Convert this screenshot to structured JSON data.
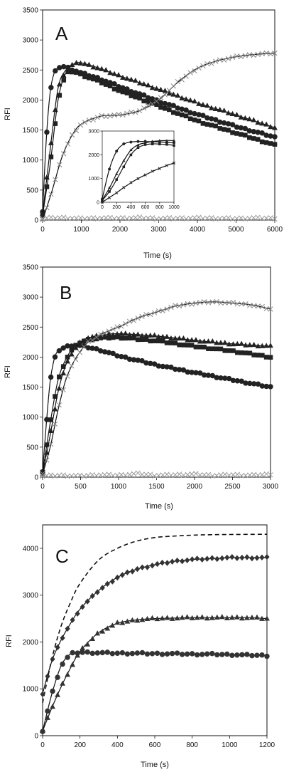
{
  "chart_data": [
    {
      "type": "scatter",
      "panel_label": "A",
      "xlabel": "Time (s)",
      "ylabel": "RFI",
      "xlim": [
        0,
        6000
      ],
      "ylim": [
        0,
        3500
      ],
      "xticks": [
        "0",
        "1000",
        "2000",
        "3000",
        "4000",
        "5000",
        "6000"
      ],
      "yticks": [
        "0",
        "500",
        "1000",
        "1500",
        "2000",
        "2500",
        "3000",
        "3500"
      ],
      "grid": false,
      "series": [
        {
          "marker": "circle",
          "color": "#222222",
          "x": [
            0,
            100,
            200,
            300,
            400,
            500,
            600,
            800,
            1000,
            1500,
            2000,
            3000,
            4000,
            5000,
            6000
          ],
          "y": [
            150,
            1400,
            2150,
            2450,
            2540,
            2560,
            2550,
            2500,
            2450,
            2350,
            2220,
            1980,
            1760,
            1560,
            1380
          ]
        },
        {
          "marker": "triangle",
          "color": "#222222",
          "x": [
            0,
            200,
            400,
            600,
            800,
            1000,
            1500,
            2000,
            3000,
            4000,
            5000,
            6000
          ],
          "y": [
            100,
            1200,
            2200,
            2500,
            2600,
            2620,
            2520,
            2400,
            2180,
            1950,
            1750,
            1540
          ]
        },
        {
          "marker": "square",
          "color": "#222222",
          "x": [
            0,
            200,
            400,
            600,
            800,
            1000,
            1500,
            2000,
            3000,
            4000,
            5000,
            6000
          ],
          "y": [
            80,
            950,
            2000,
            2450,
            2480,
            2420,
            2300,
            2150,
            1900,
            1650,
            1450,
            1250
          ]
        },
        {
          "marker": "x",
          "color": "#888888",
          "x": [
            0,
            250,
            500,
            750,
            1000,
            1500,
            2000,
            2500,
            3000,
            3500,
            4000,
            4500,
            5000,
            5500,
            6000
          ],
          "y": [
            0,
            500,
            1050,
            1400,
            1600,
            1730,
            1750,
            1820,
            2000,
            2300,
            2530,
            2650,
            2720,
            2760,
            2780
          ]
        },
        {
          "marker": "x",
          "color": "#999999",
          "x": [
            0,
            500,
            1000,
            1500,
            2000,
            2500,
            3000,
            3500,
            4000,
            4500,
            5000,
            5500,
            6000
          ],
          "y": [
            30,
            40,
            25,
            35,
            30,
            40,
            25,
            30,
            35,
            30,
            25,
            35,
            30
          ]
        }
      ],
      "inset": {
        "xlim": [
          0,
          1000
        ],
        "ylim": [
          0,
          3000
        ],
        "xticks": [
          "0",
          "200",
          "400",
          "600",
          "800",
          "1000"
        ],
        "yticks": [
          "0",
          "1000",
          "2000",
          "3000"
        ],
        "series": [
          {
            "marker": "circle",
            "x": [
              0,
              100,
              200,
              300,
              400,
              500,
              600,
              700,
              800,
              900,
              1000
            ],
            "y": [
              150,
              1400,
              2150,
              2450,
              2540,
              2560,
              2560,
              2550,
              2540,
              2520,
              2500
            ]
          },
          {
            "marker": "triangle",
            "x": [
              0,
              100,
              200,
              300,
              400,
              500,
              600,
              700,
              800,
              900,
              1000
            ],
            "y": [
              100,
              600,
              1200,
              1750,
              2200,
              2420,
              2500,
              2560,
              2590,
              2600,
              2600
            ]
          },
          {
            "marker": "square",
            "x": [
              0,
              100,
              200,
              300,
              400,
              500,
              600,
              700,
              800,
              900,
              1000
            ],
            "y": [
              80,
              450,
              950,
              1500,
              2000,
              2300,
              2420,
              2460,
              2450,
              2430,
              2400
            ]
          },
          {
            "marker": "x",
            "x": [
              0,
              100,
              200,
              300,
              400,
              500,
              600,
              700,
              800,
              900,
              1000
            ],
            "y": [
              0,
              200,
              400,
              620,
              820,
              1000,
              1150,
              1300,
              1430,
              1550,
              1650
            ]
          }
        ]
      }
    },
    {
      "type": "scatter",
      "panel_label": "B",
      "xlabel": "Time (s)",
      "ylabel": "RFI",
      "xlim": [
        0,
        3000
      ],
      "ylim": [
        0,
        3500
      ],
      "xticks": [
        "0",
        "500",
        "1000",
        "1500",
        "2000",
        "2500",
        "3000"
      ],
      "yticks": [
        "0",
        "500",
        "1000",
        "1500",
        "2000",
        "2500",
        "3000",
        "3500"
      ],
      "grid": false,
      "series": [
        {
          "marker": "circle",
          "color": "#222222",
          "x": [
            0,
            50,
            100,
            150,
            200,
            300,
            400,
            500,
            750,
            1000,
            1500,
            2000,
            2500,
            3000
          ],
          "y": [
            100,
            900,
            1600,
            1950,
            2100,
            2170,
            2200,
            2190,
            2120,
            2020,
            1870,
            1740,
            1620,
            1500
          ]
        },
        {
          "marker": "square",
          "color": "#222222",
          "x": [
            0,
            100,
            200,
            300,
            400,
            500,
            600,
            800,
            1000,
            1500,
            2000,
            2500,
            3000
          ],
          "y": [
            80,
            900,
            1600,
            1950,
            2150,
            2250,
            2290,
            2320,
            2330,
            2270,
            2180,
            2100,
            2000
          ]
        },
        {
          "marker": "triangle",
          "color": "#222222",
          "x": [
            0,
            100,
            200,
            300,
            400,
            500,
            600,
            800,
            1000,
            1500,
            2000,
            2500,
            3000
          ],
          "y": [
            60,
            700,
            1400,
            1850,
            2100,
            2250,
            2320,
            2370,
            2390,
            2350,
            2280,
            2220,
            2180
          ]
        },
        {
          "marker": "x",
          "color": "#888888",
          "x": [
            0,
            100,
            200,
            300,
            400,
            500,
            600,
            800,
            1000,
            1250,
            1500,
            1750,
            2000,
            2250,
            2500,
            2750,
            3000
          ],
          "y": [
            50,
            500,
            1100,
            1600,
            1900,
            2100,
            2250,
            2400,
            2500,
            2650,
            2750,
            2850,
            2900,
            2920,
            2900,
            2870,
            2800
          ]
        },
        {
          "marker": "x",
          "color": "#999999",
          "x": [
            0,
            250,
            500,
            750,
            1000,
            1250,
            1500,
            1750,
            2000,
            2250,
            2500,
            2750,
            3000
          ],
          "y": [
            20,
            30,
            20,
            40,
            30,
            60,
            30,
            40,
            50,
            30,
            40,
            30,
            50
          ]
        }
      ]
    },
    {
      "type": "scatter",
      "panel_label": "C",
      "xlabel": "Time (s)",
      "ylabel": "RFI",
      "xlim": [
        0,
        1200
      ],
      "ylim": [
        0,
        4500
      ],
      "xticks": [
        "0",
        "200",
        "400",
        "600",
        "800",
        "1000",
        "1200"
      ],
      "yticks": [
        "0",
        "1000",
        "2000",
        "3000",
        "4000"
      ],
      "grid": false,
      "dashed_curve": {
        "x": [
          0,
          50,
          100,
          150,
          200,
          300,
          400,
          500,
          600,
          700,
          800,
          900,
          1000,
          1200
        ],
        "y": [
          700,
          1650,
          2350,
          2850,
          3250,
          3750,
          4000,
          4150,
          4230,
          4260,
          4280,
          4290,
          4295,
          4300
        ]
      },
      "series": [
        {
          "marker": "diamond",
          "color": "#333333",
          "x": [
            0,
            50,
            100,
            150,
            200,
            300,
            400,
            500,
            600,
            700,
            800,
            900,
            1000,
            1100,
            1200
          ],
          "y": [
            900,
            1600,
            2050,
            2400,
            2700,
            3100,
            3380,
            3550,
            3650,
            3720,
            3760,
            3780,
            3800,
            3800,
            3800
          ]
        },
        {
          "marker": "triangle",
          "color": "#333333",
          "x": [
            0,
            50,
            100,
            150,
            200,
            300,
            400,
            500,
            600,
            700,
            800,
            900,
            1000,
            1100,
            1200
          ],
          "y": [
            100,
            600,
            1050,
            1450,
            1800,
            2200,
            2400,
            2470,
            2500,
            2510,
            2520,
            2520,
            2520,
            2520,
            2500
          ]
        },
        {
          "marker": "circle",
          "color": "#333333",
          "x": [
            0,
            50,
            100,
            150,
            200,
            300,
            400,
            500,
            600,
            700,
            800,
            900,
            1000,
            1100,
            1200
          ],
          "y": [
            100,
            900,
            1500,
            1750,
            1780,
            1770,
            1760,
            1760,
            1750,
            1750,
            1740,
            1740,
            1730,
            1720,
            1710
          ]
        }
      ]
    }
  ]
}
